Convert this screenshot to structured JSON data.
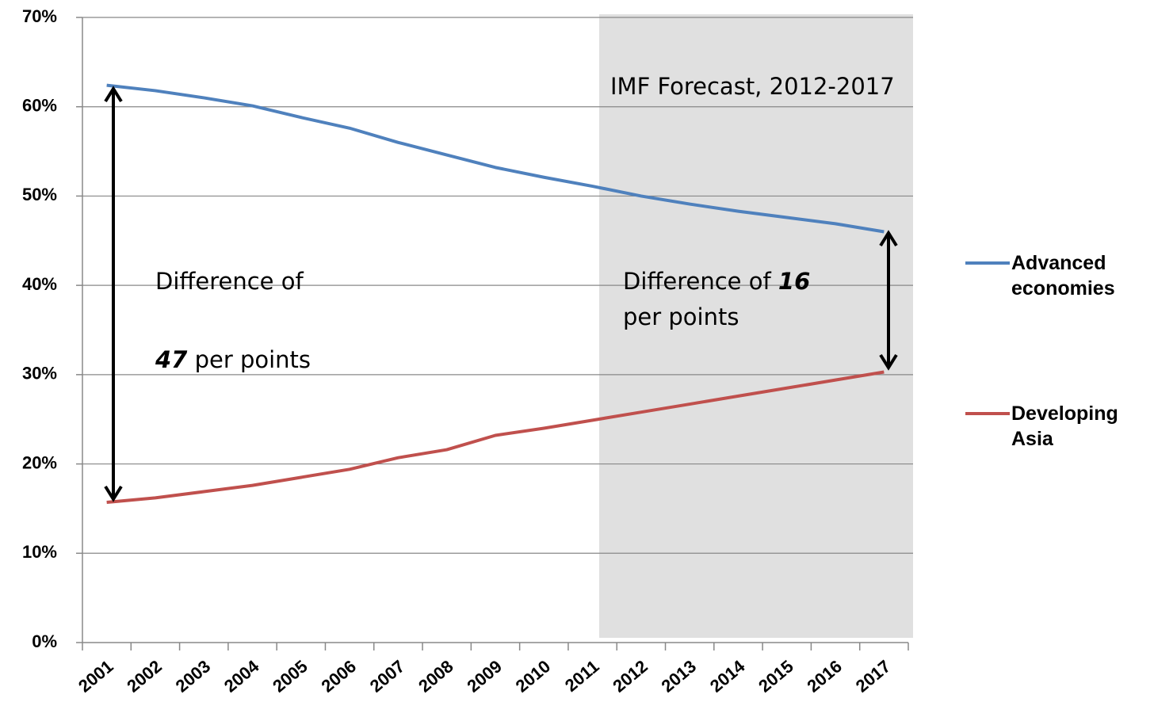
{
  "chart_data": {
    "type": "line",
    "categories": [
      "2001",
      "2002",
      "2003",
      "2004",
      "2005",
      "2006",
      "2007",
      "2008",
      "2009",
      "2010",
      "2011",
      "2012",
      "2013",
      "2014",
      "2015",
      "2016",
      "2017"
    ],
    "series": [
      {
        "name": "Advanced economies",
        "color": "#4f81bd",
        "values": [
          62.4,
          61.8,
          61.0,
          60.1,
          58.8,
          57.6,
          56.0,
          54.6,
          53.2,
          52.1,
          51.1,
          50.0,
          49.1,
          48.3,
          47.6,
          46.9,
          46.0
        ]
      },
      {
        "name": "Developing Asia",
        "color": "#c0504d",
        "values": [
          15.7,
          16.2,
          16.9,
          17.6,
          18.5,
          19.4,
          20.7,
          21.6,
          23.2,
          24.0,
          24.9,
          25.8,
          26.7,
          27.6,
          28.5,
          29.4,
          30.3
        ]
      }
    ],
    "ylim": [
      0,
      70
    ],
    "yticks": [
      {
        "value": 0,
        "label": "0%"
      },
      {
        "value": 10,
        "label": "10%"
      },
      {
        "value": 20,
        "label": "20%"
      },
      {
        "value": 30,
        "label": "30%"
      },
      {
        "value": 40,
        "label": "40%"
      },
      {
        "value": 50,
        "label": "50%"
      },
      {
        "value": 60,
        "label": "60%"
      },
      {
        "value": 70,
        "label": "70%"
      }
    ],
    "grid": true,
    "legend": "right",
    "annotations": {
      "forecast": "IMF Forecast, 2012-2017",
      "left": {
        "line1": "Difference of",
        "number": "47",
        "rest": "per points"
      },
      "right": {
        "line1": "Difference of",
        "number": "16",
        "rest": "per points"
      }
    }
  }
}
